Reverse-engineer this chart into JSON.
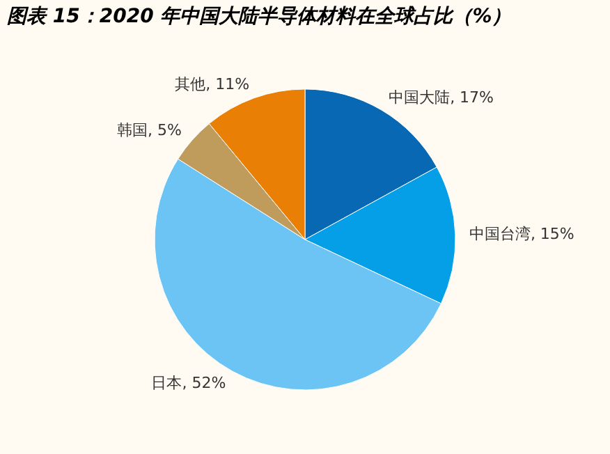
{
  "chart_data": {
    "type": "pie",
    "title": "图表 15：2020 年中国大陆半导体材料在全球占比（%）",
    "categories": [
      "中国大陆",
      "中国台湾",
      "日本",
      "韩国",
      "其他"
    ],
    "values": [
      17,
      15,
      52,
      5,
      11
    ],
    "value_labels": [
      "17%",
      "15%",
      "52%",
      "5%",
      "11%"
    ],
    "colors": [
      "#0868b4",
      "#049fe6",
      "#6cc4f4",
      "#bf9c5c",
      "#e97f05"
    ],
    "legend": false
  }
}
